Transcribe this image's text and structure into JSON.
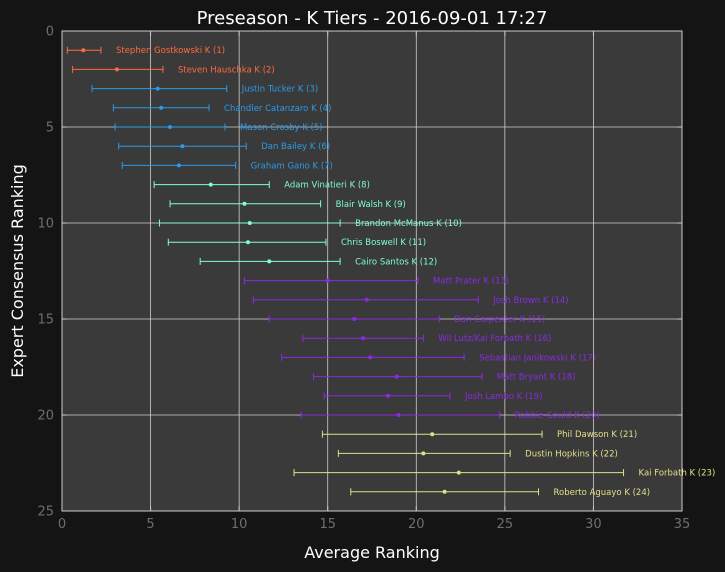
{
  "chart_data": {
    "type": "scatter",
    "title": "Preseason - K Tiers - 2016-09-01 17:27",
    "xlabel": "Average Ranking",
    "ylabel": "Expert Consensus Ranking",
    "xlim": [
      0,
      35
    ],
    "ylim": [
      25,
      0
    ],
    "xticks": [
      0,
      5,
      10,
      15,
      20,
      25,
      30,
      35
    ],
    "yticks": [
      0,
      5,
      10,
      15,
      20,
      25
    ],
    "grid": true,
    "tier_colors": {
      "1": "#ff6a3d",
      "2": "#2b9be8",
      "3": "#7fffd4",
      "4": "#8a2be2",
      "5": "#e0e08a"
    },
    "series": [
      {
        "label": "Stephen Gostkowski K (1)",
        "rank": 1,
        "avg": 1.2,
        "min": 0.3,
        "max": 2.2,
        "tier": 1
      },
      {
        "label": "Steven Hauschka K (2)",
        "rank": 2,
        "avg": 3.1,
        "min": 0.6,
        "max": 5.7,
        "tier": 1
      },
      {
        "label": "Justin Tucker K (3)",
        "rank": 3,
        "avg": 5.4,
        "min": 1.7,
        "max": 9.3,
        "tier": 2
      },
      {
        "label": "Chandler Catanzaro K (4)",
        "rank": 4,
        "avg": 5.6,
        "min": 2.9,
        "max": 8.3,
        "tier": 2
      },
      {
        "label": "Mason Crosby K (5)",
        "rank": 5,
        "avg": 6.1,
        "min": 3.0,
        "max": 9.2,
        "tier": 2
      },
      {
        "label": "Dan Bailey K (6)",
        "rank": 6,
        "avg": 6.8,
        "min": 3.2,
        "max": 10.4,
        "tier": 2
      },
      {
        "label": "Graham Gano K (7)",
        "rank": 7,
        "avg": 6.6,
        "min": 3.4,
        "max": 9.8,
        "tier": 2
      },
      {
        "label": "Adam Vinatieri K (8)",
        "rank": 8,
        "avg": 8.4,
        "min": 5.2,
        "max": 11.7,
        "tier": 3
      },
      {
        "label": "Blair Walsh K (9)",
        "rank": 9,
        "avg": 10.3,
        "min": 6.1,
        "max": 14.6,
        "tier": 3
      },
      {
        "label": "Brandon McManus K (10)",
        "rank": 10,
        "avg": 10.6,
        "min": 5.5,
        "max": 15.7,
        "tier": 3
      },
      {
        "label": "Chris Boswell K (11)",
        "rank": 11,
        "avg": 10.5,
        "min": 6.0,
        "max": 14.9,
        "tier": 3
      },
      {
        "label": "Cairo Santos K (12)",
        "rank": 12,
        "avg": 11.7,
        "min": 7.8,
        "max": 15.7,
        "tier": 3
      },
      {
        "label": "Matt Prater K (13)",
        "rank": 13,
        "avg": 15.0,
        "min": 10.3,
        "max": 20.1,
        "tier": 4
      },
      {
        "label": "Josh Brown K (14)",
        "rank": 14,
        "avg": 17.2,
        "min": 10.8,
        "max": 23.5,
        "tier": 4
      },
      {
        "label": "Dan Carpenter K (15)",
        "rank": 15,
        "avg": 16.5,
        "min": 11.7,
        "max": 21.3,
        "tier": 4
      },
      {
        "label": "Wil Lutz/Kai Forbath K (16)",
        "rank": 16,
        "avg": 17.0,
        "min": 13.6,
        "max": 20.4,
        "tier": 4
      },
      {
        "label": "Sebastian Janikowski K (17)",
        "rank": 17,
        "avg": 17.4,
        "min": 12.4,
        "max": 22.7,
        "tier": 4
      },
      {
        "label": "Matt Bryant K (18)",
        "rank": 18,
        "avg": 18.9,
        "min": 14.2,
        "max": 23.7,
        "tier": 4
      },
      {
        "label": "Josh Lambo K (19)",
        "rank": 19,
        "avg": 18.4,
        "min": 14.8,
        "max": 21.9,
        "tier": 4
      },
      {
        "label": "Robbie Gould K (20)",
        "rank": 20,
        "avg": 19.0,
        "min": 13.5,
        "max": 24.7,
        "tier": 4
      },
      {
        "label": "Phil Dawson K (21)",
        "rank": 21,
        "avg": 20.9,
        "min": 14.7,
        "max": 27.1,
        "tier": 5
      },
      {
        "label": "Dustin Hopkins K (22)",
        "rank": 22,
        "avg": 20.4,
        "min": 15.6,
        "max": 25.3,
        "tier": 5
      },
      {
        "label": "Kai Forbath K (23)",
        "rank": 23,
        "avg": 22.4,
        "min": 13.1,
        "max": 31.7,
        "tier": 5
      },
      {
        "label": "Roberto Aguayo K (24)",
        "rank": 24,
        "avg": 21.6,
        "min": 16.3,
        "max": 26.9,
        "tier": 5
      }
    ]
  }
}
